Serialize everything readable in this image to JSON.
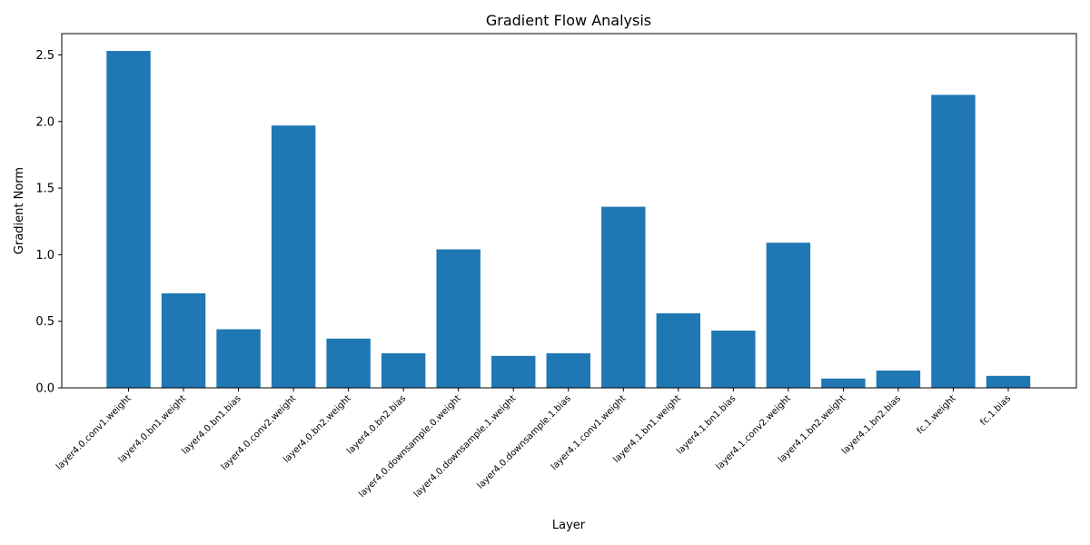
{
  "chart_data": {
    "type": "bar",
    "title": "Gradient Flow Analysis",
    "xlabel": "Layer",
    "ylabel": "Gradient Norm",
    "categories": [
      "layer4.0.conv1.weight",
      "layer4.0.bn1.weight",
      "layer4.0.bn1.bias",
      "layer4.0.conv2.weight",
      "layer4.0.bn2.weight",
      "layer4.0.bn2.bias",
      "layer4.0.downsample.0.weight",
      "layer4.0.downsample.1.weight",
      "layer4.0.downsample.1.bias",
      "layer4.1.conv1.weight",
      "layer4.1.bn1.weight",
      "layer4.1.bn1.bias",
      "layer4.1.conv2.weight",
      "layer4.1.bn2.weight",
      "layer4.1.bn2.bias",
      "fc.1.weight",
      "fc.1.bias"
    ],
    "values": [
      2.53,
      0.71,
      0.44,
      1.97,
      0.37,
      0.26,
      1.04,
      0.24,
      0.26,
      1.36,
      0.56,
      0.43,
      1.09,
      0.07,
      0.13,
      2.2,
      0.09
    ],
    "ylim": [
      0,
      2.66
    ],
    "y_ticks": [
      0.0,
      0.5,
      1.0,
      1.5,
      2.0,
      2.5
    ],
    "y_tick_labels": [
      "0.0",
      "0.5",
      "1.0",
      "1.5",
      "2.0",
      "2.5"
    ],
    "bar_color": "#1f77b4",
    "grid": false,
    "legend": "none"
  }
}
